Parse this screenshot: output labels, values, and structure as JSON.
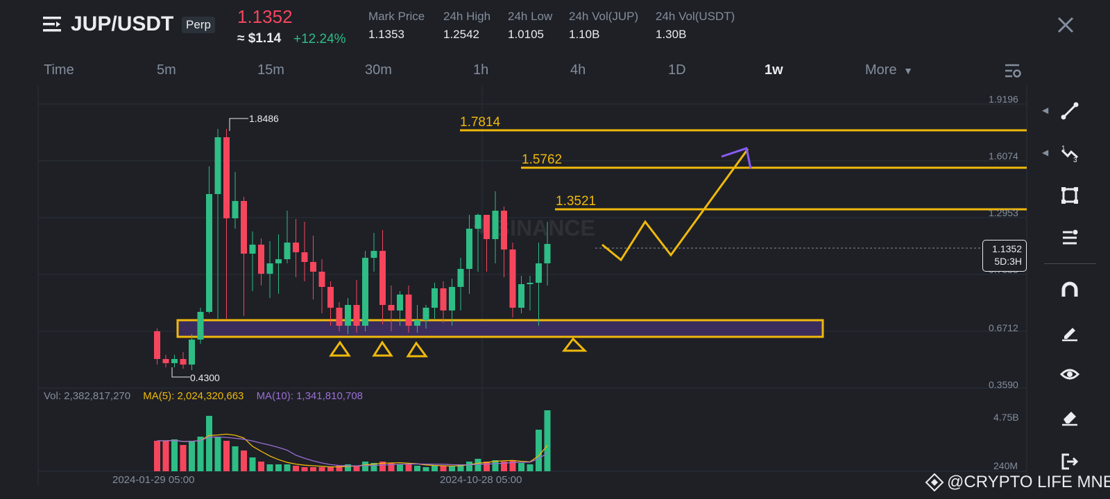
{
  "header": {
    "menu_icon": "menu-icon",
    "pair": "JUP/USDT",
    "badge": "Perp",
    "last_price": "1.1352",
    "usd_price": "≈ $1.14",
    "change": "+12.24%",
    "stats": [
      {
        "label": "Mark Price",
        "value": "1.1353"
      },
      {
        "label": "24h High",
        "value": "1.2542"
      },
      {
        "label": "24h Low",
        "value": "1.0105"
      },
      {
        "label": "24h Vol(JUP)",
        "value": "1.10B"
      },
      {
        "label": "24h Vol(USDT)",
        "value": "1.30B"
      }
    ],
    "close_icon": "close-icon"
  },
  "timeframes": {
    "items": [
      "Time",
      "5m",
      "15m",
      "30m",
      "1h",
      "4h",
      "1D",
      "1w",
      "More"
    ],
    "active": "1w",
    "settings_icon": "chart-settings-icon"
  },
  "price_axis": [
    "1.9196",
    "1.6074",
    "1.2953",
    "0.7835",
    "0.6712",
    "0.3590"
  ],
  "current_price": {
    "value": "1.1352",
    "countdown": "5D:3H"
  },
  "annotations": {
    "high_label": "1.8486",
    "low_label": "0.4300",
    "levels": [
      "1.7814",
      "1.5762",
      "1.3521"
    ]
  },
  "watermark": "BINANCE",
  "volume": {
    "vol": "Vol: 2,382,817,270",
    "ma5": "MA(5): 2,024,320,663",
    "ma10": "MA(10): 1,341,810,708",
    "axis_top": "4.75B",
    "axis_bottom": "240M"
  },
  "dates": [
    "2024-01-29 05:00",
    "2024-10-28 05:00"
  ],
  "credit": "@CRYPTO LIFE MNE",
  "colors": {
    "up": "#2ebd85",
    "down": "#f6465d",
    "level": "#f0b90b",
    "purple": "#8b5cf6",
    "ma5": "#f0b90b",
    "ma10": "#9b6fd6"
  },
  "toolbar_icons": [
    "trend-line-icon",
    "fib-icon",
    "rectangle-icon",
    "text-lines-icon",
    "magnet-icon",
    "pencil-icon",
    "eye-icon",
    "eraser-icon",
    "exit-icon"
  ]
}
